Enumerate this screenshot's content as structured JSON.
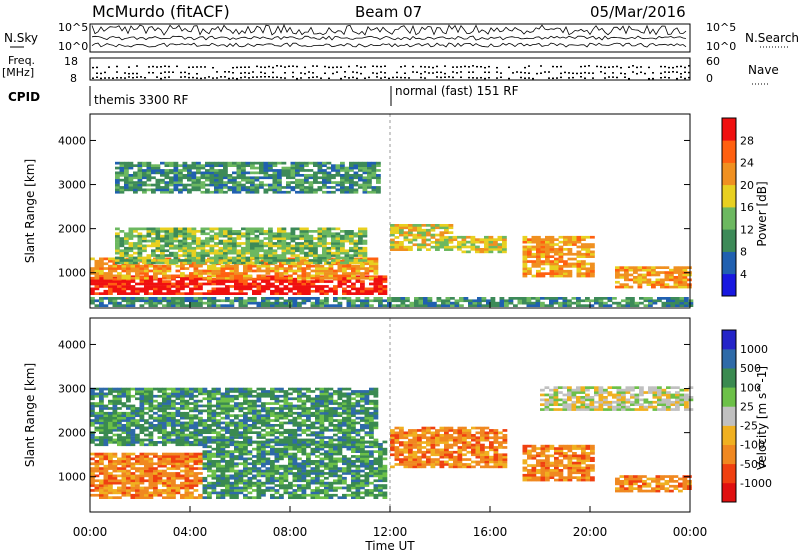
{
  "header": {
    "title": "McMurdo (fitACF)",
    "beam": "Beam 07",
    "date": "05/Mar/2016"
  },
  "status_panels": {
    "nsky_label": "N.Sky",
    "nsky_ticks": [
      "10^5",
      "10^0"
    ],
    "nsearch_label": "N.Search",
    "nsearch_ticks": [
      "10^5",
      "10^0"
    ],
    "freq_label": "Freq.",
    "freq_unit": "[MHz]",
    "freq_ticks": [
      "18",
      "8"
    ],
    "nave_label": "Nave",
    "nave_ticks": [
      "60",
      "0"
    ],
    "cpid_label": "CPID",
    "cpid_segments": [
      {
        "start_hour": 0.0,
        "label": "themis 3300 RF"
      },
      {
        "start_hour": 12.0,
        "label": "normal (fast) 151 RF"
      }
    ]
  },
  "chart_data": [
    {
      "type": "heatmap",
      "name": "power",
      "ylabel": "Slant Range [km]",
      "yticks": [
        "1000",
        "2000",
        "3000",
        "4000"
      ],
      "ylim": [
        200,
        4600
      ],
      "xlim": [
        0,
        24
      ],
      "colorbar_label": "Power [dB]",
      "colorbar_ticks": [
        "4",
        "8",
        "12",
        "16",
        "20",
        "24",
        "28"
      ],
      "colors": [
        "#1818e0",
        "#2060b0",
        "#3d8a58",
        "#6cb860",
        "#e8d020",
        "#f09020",
        "#ff6010",
        "#f01010"
      ],
      "echo_regions": [
        {
          "t0": 0.0,
          "t1": 11.8,
          "r0": 500,
          "r1": 900,
          "level": 7
        },
        {
          "t0": 0.0,
          "t1": 11.5,
          "r0": 850,
          "r1": 1300,
          "level": 5
        },
        {
          "t0": 1.0,
          "t1": 11.0,
          "r0": 1200,
          "r1": 2000,
          "level": 3
        },
        {
          "t0": 0.0,
          "t1": 24.0,
          "r0": 230,
          "r1": 420,
          "level": 2
        },
        {
          "t0": 1.0,
          "t1": 11.5,
          "r0": 2800,
          "r1": 3500,
          "level": 2
        },
        {
          "t0": 12.0,
          "t1": 14.5,
          "r0": 1500,
          "r1": 2100,
          "level": 4
        },
        {
          "t0": 14.5,
          "t1": 16.5,
          "r0": 1450,
          "r1": 1800,
          "level": 4
        },
        {
          "t0": 17.3,
          "t1": 20.0,
          "r0": 900,
          "r1": 1800,
          "level": 5
        },
        {
          "t0": 21.0,
          "t1": 24.0,
          "r0": 650,
          "r1": 1100,
          "level": 5
        }
      ]
    },
    {
      "type": "heatmap",
      "name": "velocity",
      "xlabel": "Time UT",
      "xticks": [
        "00:00",
        "04:00",
        "08:00",
        "12:00",
        "16:00",
        "20:00",
        "00:00"
      ],
      "ylabel": "Slant Range [km]",
      "yticks": [
        "1000",
        "2000",
        "3000",
        "4000"
      ],
      "ylim": [
        200,
        4600
      ],
      "xlim": [
        0,
        24
      ],
      "colorbar_label": "Velocity [m s^-1]",
      "colorbar_ticks": [
        "1000",
        "500",
        "100",
        "25",
        "-25",
        "-100",
        "-500",
        "-1000"
      ],
      "colors": [
        "#2424c8",
        "#2e6aa8",
        "#3a8a50",
        "#6cc048",
        "#c0c0c0",
        "#f0b020",
        "#f08820",
        "#f04010",
        "#e01010"
      ],
      "echo_regions": [
        {
          "t0": 0.0,
          "t1": 4.5,
          "r0": 500,
          "r1": 1500,
          "level": 6
        },
        {
          "t0": 4.5,
          "t1": 11.8,
          "r0": 500,
          "r1": 1800,
          "level": 2
        },
        {
          "t0": 0.0,
          "t1": 11.5,
          "r0": 1700,
          "r1": 3000,
          "level": 2
        },
        {
          "t0": 12.0,
          "t1": 16.5,
          "r0": 1200,
          "r1": 2100,
          "level": 6
        },
        {
          "t0": 17.3,
          "t1": 20.0,
          "r0": 900,
          "r1": 1700,
          "level": 6
        },
        {
          "t0": 21.0,
          "t1": 24.0,
          "r0": 650,
          "r1": 1000,
          "level": 6
        },
        {
          "t0": 18.0,
          "t1": 24.0,
          "r0": 2500,
          "r1": 3000,
          "level": 4
        }
      ]
    }
  ]
}
